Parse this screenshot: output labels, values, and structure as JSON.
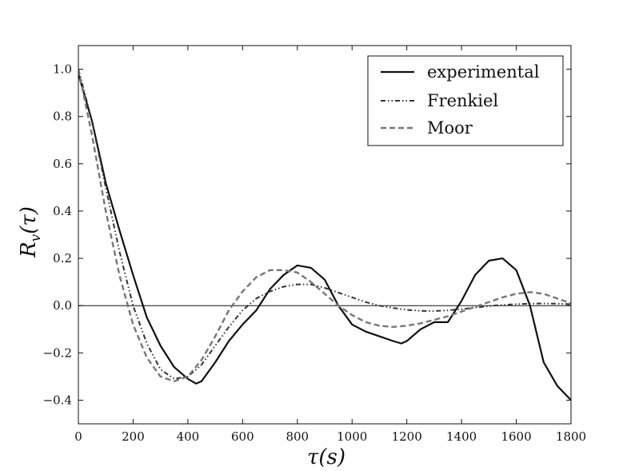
{
  "chart_data": {
    "type": "line",
    "xlabel": {
      "base": "τ",
      "rest": "(s)"
    },
    "ylabel": {
      "base": "R",
      "sub": "v",
      "rest": "(τ)"
    },
    "xlim": [
      0,
      1800
    ],
    "ylim": [
      -0.5,
      1.1
    ],
    "xticks": [
      0,
      200,
      400,
      600,
      800,
      1000,
      1200,
      1400,
      1600,
      1800
    ],
    "xtick_labels": [
      "0",
      "200",
      "400",
      "600",
      "800",
      "1000",
      "1200",
      "1400",
      "1600",
      "1800"
    ],
    "yticks": [
      -0.4,
      -0.2,
      0.0,
      0.2,
      0.4,
      0.6,
      0.8,
      1.0
    ],
    "ytick_labels": [
      "−0.4",
      "−0.2",
      "0.0",
      "0.2",
      "0.4",
      "0.6",
      "0.8",
      "1.0"
    ],
    "grid": false,
    "hline": 0,
    "legend_position": "top-right",
    "series": [
      {
        "name": "experimental",
        "color": "#111111",
        "style": "solid",
        "x": [
          0,
          50,
          100,
          150,
          200,
          250,
          300,
          350,
          400,
          430,
          450,
          500,
          550,
          600,
          650,
          700,
          750,
          800,
          850,
          900,
          950,
          1000,
          1050,
          1100,
          1150,
          1180,
          1200,
          1250,
          1300,
          1350,
          1400,
          1450,
          1500,
          1550,
          1600,
          1650,
          1700,
          1750,
          1800
        ],
        "y": [
          0.98,
          0.78,
          0.52,
          0.32,
          0.13,
          -0.05,
          -0.17,
          -0.26,
          -0.31,
          -0.33,
          -0.32,
          -0.24,
          -0.15,
          -0.08,
          -0.02,
          0.07,
          0.13,
          0.17,
          0.16,
          0.11,
          0.0,
          -0.08,
          -0.11,
          -0.13,
          -0.15,
          -0.16,
          -0.15,
          -0.1,
          -0.07,
          -0.07,
          0.02,
          0.13,
          0.19,
          0.2,
          0.15,
          0.0,
          -0.24,
          -0.34,
          -0.4
        ]
      },
      {
        "name": "Frenkiel",
        "color": "#333333",
        "style": "dashdot",
        "x": [
          0,
          50,
          100,
          150,
          200,
          250,
          300,
          350,
          400,
          450,
          500,
          550,
          600,
          650,
          700,
          750,
          800,
          850,
          900,
          950,
          1000,
          1050,
          1100,
          1150,
          1200,
          1250,
          1300,
          1350,
          1400,
          1450,
          1500,
          1550,
          1600,
          1650,
          1700,
          1750,
          1800
        ],
        "y": [
          1.0,
          0.78,
          0.5,
          0.23,
          0.0,
          -0.16,
          -0.27,
          -0.31,
          -0.3,
          -0.25,
          -0.17,
          -0.09,
          -0.02,
          0.03,
          0.06,
          0.08,
          0.09,
          0.09,
          0.075,
          0.055,
          0.035,
          0.015,
          0.0,
          -0.01,
          -0.018,
          -0.022,
          -0.023,
          -0.02,
          -0.015,
          -0.008,
          -0.002,
          0.003,
          0.006,
          0.008,
          0.009,
          0.008,
          0.006
        ]
      },
      {
        "name": "Moor",
        "color": "#777777",
        "style": "dashed",
        "x": [
          0,
          50,
          100,
          150,
          200,
          250,
          300,
          350,
          400,
          450,
          500,
          550,
          600,
          650,
          700,
          750,
          800,
          850,
          900,
          950,
          1000,
          1050,
          1100,
          1150,
          1200,
          1250,
          1300,
          1350,
          1400,
          1450,
          1500,
          1550,
          1600,
          1650,
          1700,
          1750,
          1800
        ],
        "y": [
          1.0,
          0.72,
          0.4,
          0.13,
          -0.08,
          -0.22,
          -0.3,
          -0.32,
          -0.3,
          -0.23,
          -0.13,
          -0.02,
          0.06,
          0.12,
          0.15,
          0.15,
          0.14,
          0.1,
          0.05,
          0.0,
          -0.04,
          -0.07,
          -0.085,
          -0.09,
          -0.085,
          -0.075,
          -0.06,
          -0.045,
          -0.025,
          -0.005,
          0.015,
          0.035,
          0.05,
          0.057,
          0.05,
          0.03,
          0.01
        ]
      }
    ]
  }
}
